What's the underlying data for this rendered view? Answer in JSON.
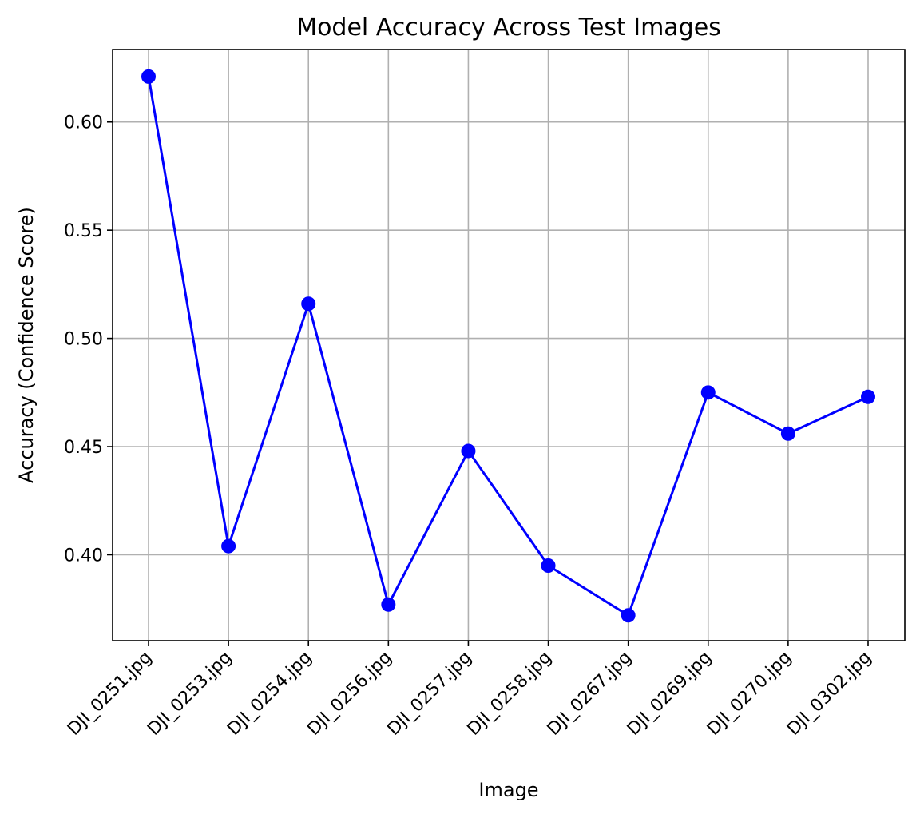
{
  "chart_data": {
    "type": "line",
    "title": "Model Accuracy Across Test Images",
    "xlabel": "Image",
    "ylabel": "Accuracy (Confidence Score)",
    "categories": [
      "DJI_0251.jpg",
      "DJI_0253.jpg",
      "DJI_0254.jpg",
      "DJI_0256.jpg",
      "DJI_0257.jpg",
      "DJI_0258.jpg",
      "DJI_0267.jpg",
      "DJI_0269.jpg",
      "DJI_0270.jpg",
      "DJI_0302.jpg"
    ],
    "series": [
      {
        "values": [
          0.621,
          0.404,
          0.516,
          0.377,
          0.448,
          0.395,
          0.372,
          0.475,
          0.456,
          0.473
        ],
        "color": "#0000ff",
        "marker": "circle"
      }
    ],
    "ylim": [
      0.3603,
      0.6335
    ],
    "yticks": [
      0.4,
      0.45,
      0.5,
      0.55,
      0.6
    ],
    "ytick_labels": [
      "0.40",
      "0.45",
      "0.50",
      "0.55",
      "0.60"
    ],
    "grid": true,
    "legend": "none",
    "xtick_rotation": 45
  }
}
